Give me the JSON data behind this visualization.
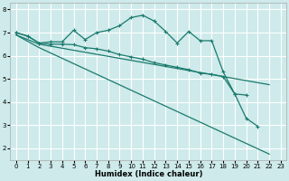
{
  "xlabel": "Humidex (Indice chaleur)",
  "bg_color": "#ceeaea",
  "grid_color": "#ffffff",
  "line_color": "#1a7a6e",
  "xlim": [
    -0.5,
    23.5
  ],
  "ylim": [
    1.5,
    8.3
  ],
  "xticks": [
    0,
    1,
    2,
    3,
    4,
    5,
    6,
    7,
    8,
    9,
    10,
    11,
    12,
    13,
    14,
    15,
    16,
    17,
    18,
    19,
    20,
    21,
    22,
    23
  ],
  "yticks": [
    2,
    3,
    4,
    5,
    6,
    7,
    8
  ],
  "line1_x": [
    0,
    1,
    2,
    3,
    4,
    5,
    6,
    7,
    8,
    9,
    10,
    11,
    12,
    13,
    14,
    15,
    16,
    17,
    18,
    19,
    20,
    21
  ],
  "line1_y": [
    7.0,
    6.85,
    6.55,
    6.6,
    6.6,
    7.1,
    6.7,
    7.0,
    7.1,
    7.3,
    7.65,
    7.75,
    7.5,
    7.05,
    6.55,
    7.05,
    6.65,
    6.65,
    5.3,
    4.35,
    3.3,
    2.95
  ],
  "line2_x": [
    0,
    1,
    2,
    3,
    4,
    5,
    6,
    7,
    8,
    9,
    10,
    11,
    12,
    13,
    14,
    15,
    16,
    17,
    18,
    19,
    20
  ],
  "line2_y": [
    7.0,
    6.85,
    6.55,
    6.5,
    6.5,
    6.48,
    6.35,
    6.3,
    6.2,
    6.05,
    5.95,
    5.85,
    5.7,
    5.6,
    5.5,
    5.4,
    5.25,
    5.2,
    5.1,
    4.35,
    4.3
  ],
  "line3_x": [
    0,
    2,
    22
  ],
  "line3_y": [
    6.9,
    6.5,
    4.75
  ],
  "line4_x": [
    0,
    2,
    22
  ],
  "line4_y": [
    6.9,
    6.35,
    1.75
  ],
  "marker_line1": true,
  "marker_line2": true
}
